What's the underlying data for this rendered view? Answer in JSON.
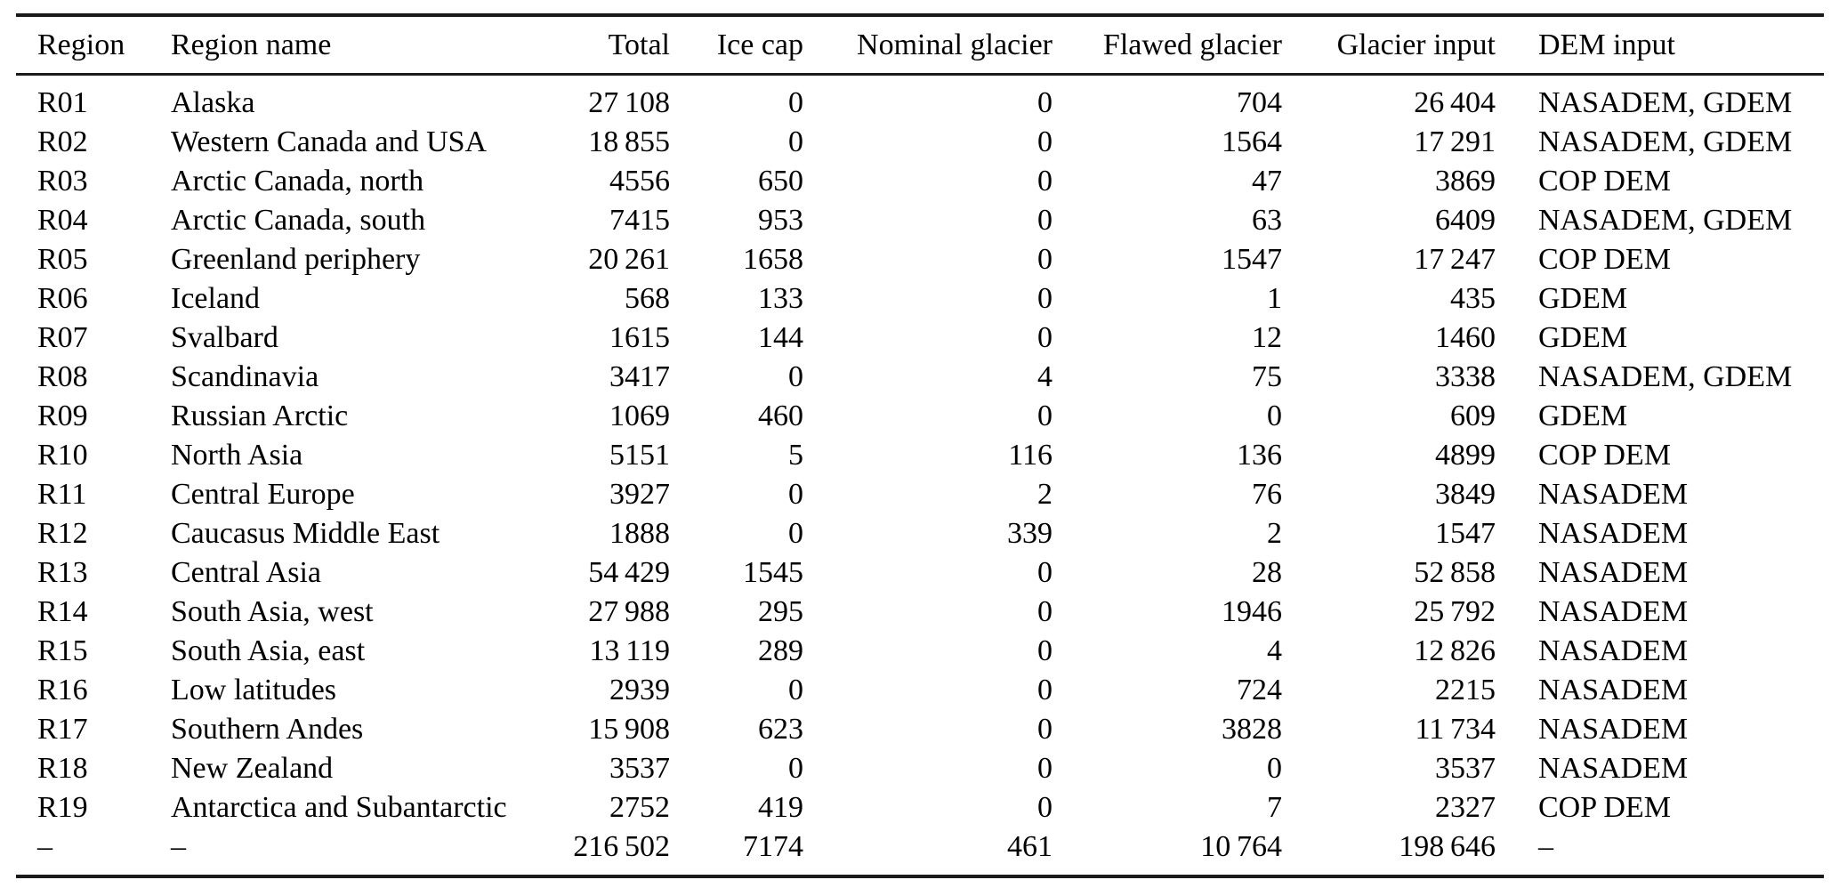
{
  "colors": {
    "background": "#ffffff",
    "text": "#000000",
    "rule": "#1a1a1a"
  },
  "table": {
    "columns": [
      {
        "key": "region",
        "label": "Region",
        "align": "left"
      },
      {
        "key": "region_name",
        "label": "Region name",
        "align": "left"
      },
      {
        "key": "total",
        "label": "Total",
        "align": "right"
      },
      {
        "key": "ice_cap",
        "label": "Ice cap",
        "align": "right"
      },
      {
        "key": "nominal_glacier",
        "label": "Nominal glacier",
        "align": "right"
      },
      {
        "key": "flawed_glacier",
        "label": "Flawed glacier",
        "align": "right"
      },
      {
        "key": "glacier_input",
        "label": "Glacier input",
        "align": "right"
      },
      {
        "key": "dem_input",
        "label": "DEM input",
        "align": "left"
      }
    ],
    "rows": [
      [
        "R01",
        "Alaska",
        "27 108",
        "0",
        "0",
        "704",
        "26 404",
        "NASADEM, GDEM"
      ],
      [
        "R02",
        "Western Canada and USA",
        "18 855",
        "0",
        "0",
        "1564",
        "17 291",
        "NASADEM, GDEM"
      ],
      [
        "R03",
        "Arctic Canada, north",
        "4556",
        "650",
        "0",
        "47",
        "3869",
        "COP DEM"
      ],
      [
        "R04",
        "Arctic Canada, south",
        "7415",
        "953",
        "0",
        "63",
        "6409",
        "NASADEM, GDEM"
      ],
      [
        "R05",
        "Greenland periphery",
        "20 261",
        "1658",
        "0",
        "1547",
        "17 247",
        "COP DEM"
      ],
      [
        "R06",
        "Iceland",
        "568",
        "133",
        "0",
        "1",
        "435",
        "GDEM"
      ],
      [
        "R07",
        "Svalbard",
        "1615",
        "144",
        "0",
        "12",
        "1460",
        "GDEM"
      ],
      [
        "R08",
        "Scandinavia",
        "3417",
        "0",
        "4",
        "75",
        "3338",
        "NASADEM, GDEM"
      ],
      [
        "R09",
        "Russian Arctic",
        "1069",
        "460",
        "0",
        "0",
        "609",
        "GDEM"
      ],
      [
        "R10",
        "North Asia",
        "5151",
        "5",
        "116",
        "136",
        "4899",
        "COP DEM"
      ],
      [
        "R11",
        "Central Europe",
        "3927",
        "0",
        "2",
        "76",
        "3849",
        "NASADEM"
      ],
      [
        "R12",
        "Caucasus Middle East",
        "1888",
        "0",
        "339",
        "2",
        "1547",
        "NASADEM"
      ],
      [
        "R13",
        "Central Asia",
        "54 429",
        "1545",
        "0",
        "28",
        "52 858",
        "NASADEM"
      ],
      [
        "R14",
        "South Asia, west",
        "27 988",
        "295",
        "0",
        "1946",
        "25 792",
        "NASADEM"
      ],
      [
        "R15",
        "South Asia, east",
        "13 119",
        "289",
        "0",
        "4",
        "12 826",
        "NASADEM"
      ],
      [
        "R16",
        "Low latitudes",
        "2939",
        "0",
        "0",
        "724",
        "2215",
        "NASADEM"
      ],
      [
        "R17",
        "Southern Andes",
        "15 908",
        "623",
        "0",
        "3828",
        "11 734",
        "NASADEM"
      ],
      [
        "R18",
        "New Zealand",
        "3537",
        "0",
        "0",
        "0",
        "3537",
        "NASADEM"
      ],
      [
        "R19",
        "Antarctica and Subantarctic",
        "2752",
        "419",
        "0",
        "7",
        "2327",
        "COP DEM"
      ],
      [
        "–",
        "–",
        "216 502",
        "7174",
        "461",
        "10 764",
        "198 646",
        "–"
      ]
    ]
  }
}
